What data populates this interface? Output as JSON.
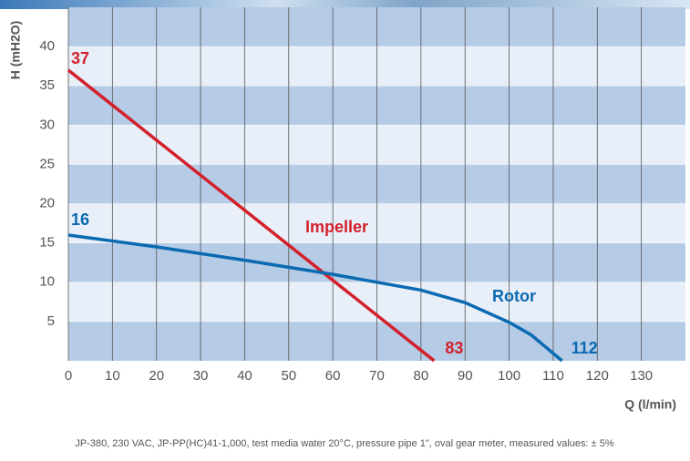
{
  "chart_data": {
    "type": "line",
    "y_label": "H (mH2O)",
    "x_label": "Q (l/min)",
    "note": "JP-380, 230 VAC, JP-PP(HC)41-1,000, test media water 20°C, pressure pipe 1\", oval gear meter, measured values: ± 5%",
    "xlim": [
      0,
      140
    ],
    "xticks": [
      0,
      10,
      20,
      30,
      40,
      50,
      60,
      70,
      80,
      90,
      100,
      110,
      120,
      130
    ],
    "ylim": [
      0,
      45
    ],
    "yticks": [
      5,
      10,
      15,
      20,
      25,
      30,
      35,
      40
    ],
    "series": [
      {
        "name": "Impeller",
        "color": "#d3202b",
        "x": [
          0,
          83
        ],
        "values": [
          37,
          0
        ]
      },
      {
        "name": "Rotor",
        "color": "#0a6ab2",
        "x": [
          0,
          20,
          40,
          60,
          80,
          90,
          100,
          105,
          112
        ],
        "values": [
          16,
          14.5,
          12.8,
          11,
          9,
          7.4,
          4.9,
          3.3,
          0
        ]
      }
    ]
  }
}
